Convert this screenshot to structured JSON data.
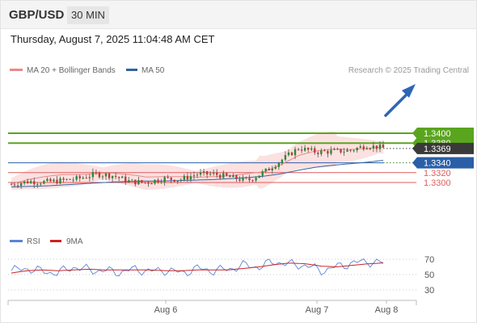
{
  "header": {
    "symbol": "GBP/USD",
    "timeframe": "30 MIN"
  },
  "timestamp": "Thursday, August 7, 2025 11:04:48 AM CET",
  "legend": {
    "ma20": "MA 20 + Bollinger Bands",
    "ma50": "MA 50"
  },
  "credit": "Research © 2025 Trading Central",
  "colors": {
    "ma20": "#e88a8a",
    "ma50": "#33649e",
    "resistance": "#5aa51e",
    "support": "#2a5fa8",
    "level": "#e05c5c",
    "current": "#3a3a3a",
    "rsi": "#5a84d6",
    "rsi_ma": "#cc2222"
  },
  "chart_data": [
    {
      "type": "candlestick",
      "title": "GBP/USD 30 MIN",
      "xlabel": "",
      "ylabel": "",
      "x_ticks": [
        "Aug 6",
        "Aug 7",
        "Aug 8"
      ],
      "y_range": [
        1.3262,
        1.3415
      ],
      "current_price": 1.3369,
      "levels": [
        {
          "label": "1.3400",
          "value": 1.34,
          "kind": "resistance"
        },
        {
          "label": "1.3380",
          "value": 1.338,
          "kind": "resistance"
        },
        {
          "label": "1.3369",
          "value": 1.3369,
          "kind": "current"
        },
        {
          "label": "1.3340",
          "value": 1.334,
          "kind": "pivot"
        },
        {
          "label": "1.3320",
          "value": 1.332,
          "kind": "support"
        },
        {
          "label": "1.3300",
          "value": 1.33,
          "kind": "support"
        }
      ],
      "forecast": "up, toward 1.3400",
      "series": [
        {
          "name": "MA 20",
          "values": [
            1.3297,
            1.3306,
            1.3312,
            1.3316,
            1.3316,
            1.3318,
            1.3319,
            1.3316,
            1.3311,
            1.3312,
            1.3312,
            1.3311,
            1.3312,
            1.3314,
            1.3318,
            1.3322,
            1.3337,
            1.3355,
            1.3364,
            1.3368,
            1.3367,
            1.3369,
            1.3372
          ]
        },
        {
          "name": "MA 50",
          "values": [
            1.3291,
            1.3292,
            1.3293,
            1.3295,
            1.3297,
            1.3299,
            1.3301,
            1.3302,
            1.3303,
            1.3303,
            1.3304,
            1.3305,
            1.3306,
            1.3308,
            1.331,
            1.3313,
            1.3318,
            1.3325,
            1.3331,
            1.3335,
            1.3338,
            1.3341,
            1.3345
          ]
        },
        {
          "name": "Close",
          "values": [
            1.3296,
            1.3302,
            1.3301,
            1.3304,
            1.3308,
            1.3317,
            1.3314,
            1.3302,
            1.33,
            1.3308,
            1.3306,
            1.3317,
            1.3317,
            1.331,
            1.3304,
            1.3322,
            1.3346,
            1.337,
            1.3362,
            1.3363,
            1.3365,
            1.3375,
            1.337
          ]
        }
      ]
    },
    {
      "type": "line",
      "title": "",
      "xlabel": "",
      "ylabel": "",
      "y_ticks": [
        70,
        50,
        30
      ],
      "series": [
        {
          "name": "RSI",
          "values": [
            55,
            58,
            54,
            52,
            60,
            56,
            55,
            53,
            57,
            54,
            56,
            52,
            58,
            55,
            57,
            62,
            60,
            67,
            63,
            62,
            55,
            60,
            65,
            67,
            65
          ]
        },
        {
          "name": "9MA",
          "values": [
            52,
            55,
            56,
            55,
            56,
            57,
            56,
            56,
            56,
            56,
            55,
            55,
            56,
            56,
            56,
            58,
            60,
            63,
            65,
            64,
            61,
            60,
            62,
            64,
            65
          ]
        }
      ]
    }
  ],
  "rsi_legend": {
    "rsi": "RSI",
    "ma": "9MA"
  }
}
